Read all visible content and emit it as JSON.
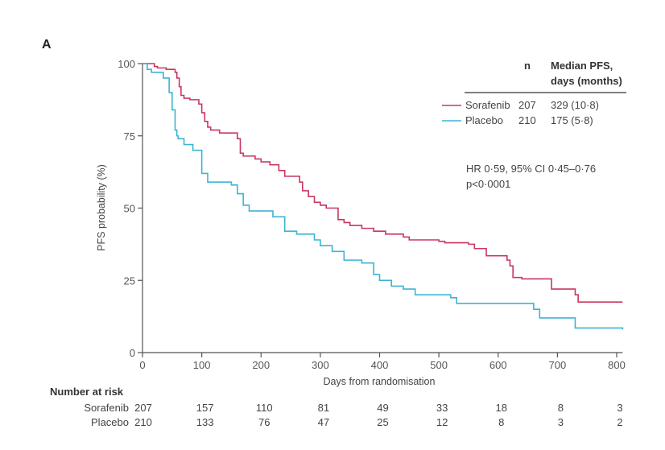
{
  "panel_label": "A",
  "chart_data": {
    "type": "line",
    "subtype": "kaplan-meier",
    "xlabel": "Days from randomisation",
    "ylabel": "PFS probability (%)",
    "xlim": [
      0,
      810
    ],
    "ylim": [
      0,
      100
    ],
    "xticks": [
      0,
      100,
      200,
      300,
      400,
      500,
      600,
      700,
      800
    ],
    "yticks": [
      0,
      25,
      50,
      75,
      100
    ],
    "grid": false,
    "legend": {
      "placement": "top-right",
      "header_n": "n",
      "header_median_line1": "Median PFS,",
      "header_median_line2": "days (months)",
      "entries": [
        {
          "name": "Sorafenib",
          "n": "207",
          "median": "329 (10·8)",
          "color": "#c8375f"
        },
        {
          "name": "Placebo",
          "n": "210",
          "median": "175 (5·8)",
          "color": "#3db4d4"
        }
      ]
    },
    "annotations": [
      "HR 0·59, 95% CI 0·45–0·76",
      "p<0·0001"
    ],
    "series": [
      {
        "name": "Sorafenib",
        "color": "#c8375f",
        "x": [
          0,
          20,
          25,
          40,
          55,
          58,
          62,
          65,
          70,
          80,
          95,
          100,
          105,
          110,
          115,
          130,
          160,
          165,
          170,
          190,
          200,
          215,
          230,
          240,
          265,
          270,
          280,
          290,
          300,
          310,
          330,
          340,
          350,
          370,
          390,
          410,
          440,
          450,
          500,
          510,
          550,
          560,
          580,
          615,
          620,
          625,
          640,
          680,
          690,
          730,
          735,
          810
        ],
        "y": [
          100,
          99,
          98.5,
          98,
          97,
          95,
          92,
          89,
          88,
          87.5,
          86,
          83,
          80,
          78,
          77,
          76,
          74,
          69,
          68,
          67,
          66,
          65,
          63,
          61,
          59,
          56,
          54,
          52,
          51,
          50,
          46,
          45,
          44,
          43,
          42,
          41,
          40,
          39,
          38.5,
          38,
          37.5,
          36,
          33.5,
          32,
          30,
          26,
          25.5,
          25.5,
          22,
          20,
          17.5,
          17.5
        ]
      },
      {
        "name": "Placebo",
        "color": "#3db4d4",
        "x": [
          0,
          8,
          15,
          35,
          45,
          50,
          55,
          58,
          60,
          70,
          85,
          100,
          110,
          150,
          160,
          170,
          180,
          220,
          240,
          260,
          290,
          300,
          320,
          340,
          370,
          390,
          400,
          420,
          440,
          460,
          500,
          520,
          530,
          600,
          620,
          660,
          670,
          725,
          730,
          810
        ],
        "y": [
          100,
          98,
          97,
          95,
          90,
          84,
          77,
          75,
          74,
          72,
          70,
          62,
          59,
          58,
          55,
          51,
          49,
          47,
          42,
          41,
          39,
          37,
          35,
          32,
          31,
          27,
          25,
          23,
          22,
          20,
          20,
          19,
          17,
          17,
          17,
          15,
          12,
          12,
          8.5,
          8
        ]
      }
    ],
    "risk_table": {
      "title": "Number at risk",
      "timepoints": [
        0,
        100,
        200,
        300,
        400,
        500,
        600,
        700,
        800
      ],
      "rows": [
        {
          "name": "Sorafenib",
          "values": [
            "207",
            "157",
            "110",
            "81",
            "49",
            "33",
            "18",
            "8",
            "3"
          ]
        },
        {
          "name": "Placebo",
          "values": [
            "210",
            "133",
            "76",
            "47",
            "25",
            "12",
            "8",
            "3",
            "2"
          ]
        }
      ]
    }
  }
}
